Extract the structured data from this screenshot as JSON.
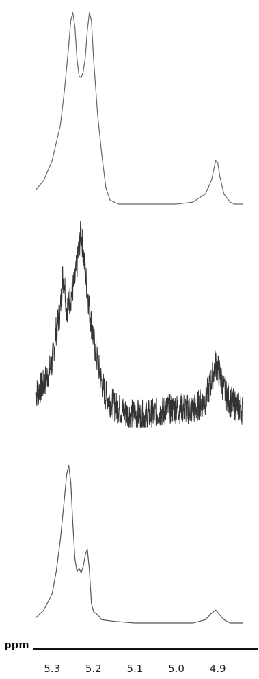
{
  "chart_data": {
    "type": "line",
    "title": "",
    "xlabel": "ppm",
    "ylabel": "",
    "x_axis_reversed": true,
    "xlim": [
      5.34,
      4.84
    ],
    "xticks": [
      5.3,
      5.2,
      5.1,
      5.0,
      4.9
    ],
    "xtick_labels": [
      "5.3",
      "5.2",
      "5.1",
      "5.0",
      "4.9"
    ],
    "grid": false,
    "legend": "none",
    "line_color": "#555555",
    "series": [
      {
        "noisy": false,
        "points": [
          [
            5.34,
            0.07
          ],
          [
            5.32,
            0.12
          ],
          [
            5.3,
            0.22
          ],
          [
            5.28,
            0.4
          ],
          [
            5.27,
            0.58
          ],
          [
            5.26,
            0.8
          ],
          [
            5.255,
            0.93
          ],
          [
            5.25,
            0.97
          ],
          [
            5.245,
            0.9
          ],
          [
            5.24,
            0.74
          ],
          [
            5.235,
            0.65
          ],
          [
            5.23,
            0.64
          ],
          [
            5.225,
            0.67
          ],
          [
            5.22,
            0.74
          ],
          [
            5.215,
            0.88
          ],
          [
            5.21,
            0.97
          ],
          [
            5.205,
            0.93
          ],
          [
            5.2,
            0.74
          ],
          [
            5.19,
            0.45
          ],
          [
            5.18,
            0.25
          ],
          [
            5.17,
            0.08
          ],
          [
            5.16,
            0.02
          ],
          [
            5.14,
            0.0
          ],
          [
            5.1,
            0.0
          ],
          [
            5.05,
            0.0
          ],
          [
            5.0,
            0.0
          ],
          [
            4.96,
            0.01
          ],
          [
            4.93,
            0.05
          ],
          [
            4.915,
            0.12
          ],
          [
            4.905,
            0.22
          ],
          [
            4.9,
            0.21
          ],
          [
            4.895,
            0.14
          ],
          [
            4.885,
            0.05
          ],
          [
            4.87,
            0.01
          ],
          [
            4.86,
            0.0
          ],
          [
            4.84,
            0.0
          ]
        ]
      },
      {
        "noisy": true,
        "points": [
          [
            5.34,
            0.12
          ],
          [
            5.32,
            0.17
          ],
          [
            5.3,
            0.28
          ],
          [
            5.29,
            0.45
          ],
          [
            5.28,
            0.55
          ],
          [
            5.275,
            0.72
          ],
          [
            5.27,
            0.7
          ],
          [
            5.265,
            0.56
          ],
          [
            5.26,
            0.58
          ],
          [
            5.25,
            0.66
          ],
          [
            5.245,
            0.7
          ],
          [
            5.24,
            0.78
          ],
          [
            5.235,
            0.88
          ],
          [
            5.23,
            0.95
          ],
          [
            5.225,
            0.86
          ],
          [
            5.22,
            0.74
          ],
          [
            5.21,
            0.56
          ],
          [
            5.2,
            0.4
          ],
          [
            5.19,
            0.28
          ],
          [
            5.18,
            0.18
          ],
          [
            5.17,
            0.11
          ],
          [
            5.15,
            0.06
          ],
          [
            5.12,
            0.02
          ],
          [
            5.08,
            0.01
          ],
          [
            5.05,
            0.02
          ],
          [
            5.02,
            0.04
          ],
          [
            4.99,
            0.05
          ],
          [
            4.96,
            0.04
          ],
          [
            4.93,
            0.09
          ],
          [
            4.915,
            0.19
          ],
          [
            4.905,
            0.28
          ],
          [
            4.895,
            0.22
          ],
          [
            4.885,
            0.14
          ],
          [
            4.87,
            0.08
          ],
          [
            4.84,
            0.04
          ]
        ]
      },
      {
        "noisy": false,
        "points": [
          [
            5.34,
            0.03
          ],
          [
            5.32,
            0.08
          ],
          [
            5.3,
            0.18
          ],
          [
            5.29,
            0.32
          ],
          [
            5.28,
            0.52
          ],
          [
            5.27,
            0.78
          ],
          [
            5.265,
            0.92
          ],
          [
            5.26,
            0.98
          ],
          [
            5.255,
            0.88
          ],
          [
            5.25,
            0.62
          ],
          [
            5.245,
            0.4
          ],
          [
            5.24,
            0.32
          ],
          [
            5.235,
            0.34
          ],
          [
            5.23,
            0.31
          ],
          [
            5.225,
            0.35
          ],
          [
            5.22,
            0.42
          ],
          [
            5.215,
            0.46
          ],
          [
            5.21,
            0.33
          ],
          [
            5.205,
            0.12
          ],
          [
            5.2,
            0.07
          ],
          [
            5.19,
            0.05
          ],
          [
            5.18,
            0.02
          ],
          [
            5.15,
            0.01
          ],
          [
            5.1,
            0.0
          ],
          [
            5.05,
            0.0
          ],
          [
            5.0,
            0.0
          ],
          [
            4.96,
            0.0
          ],
          [
            4.93,
            0.02
          ],
          [
            4.915,
            0.06
          ],
          [
            4.905,
            0.08
          ],
          [
            4.895,
            0.05
          ],
          [
            4.885,
            0.02
          ],
          [
            4.87,
            0.0
          ],
          [
            4.84,
            0.0
          ]
        ]
      }
    ]
  }
}
